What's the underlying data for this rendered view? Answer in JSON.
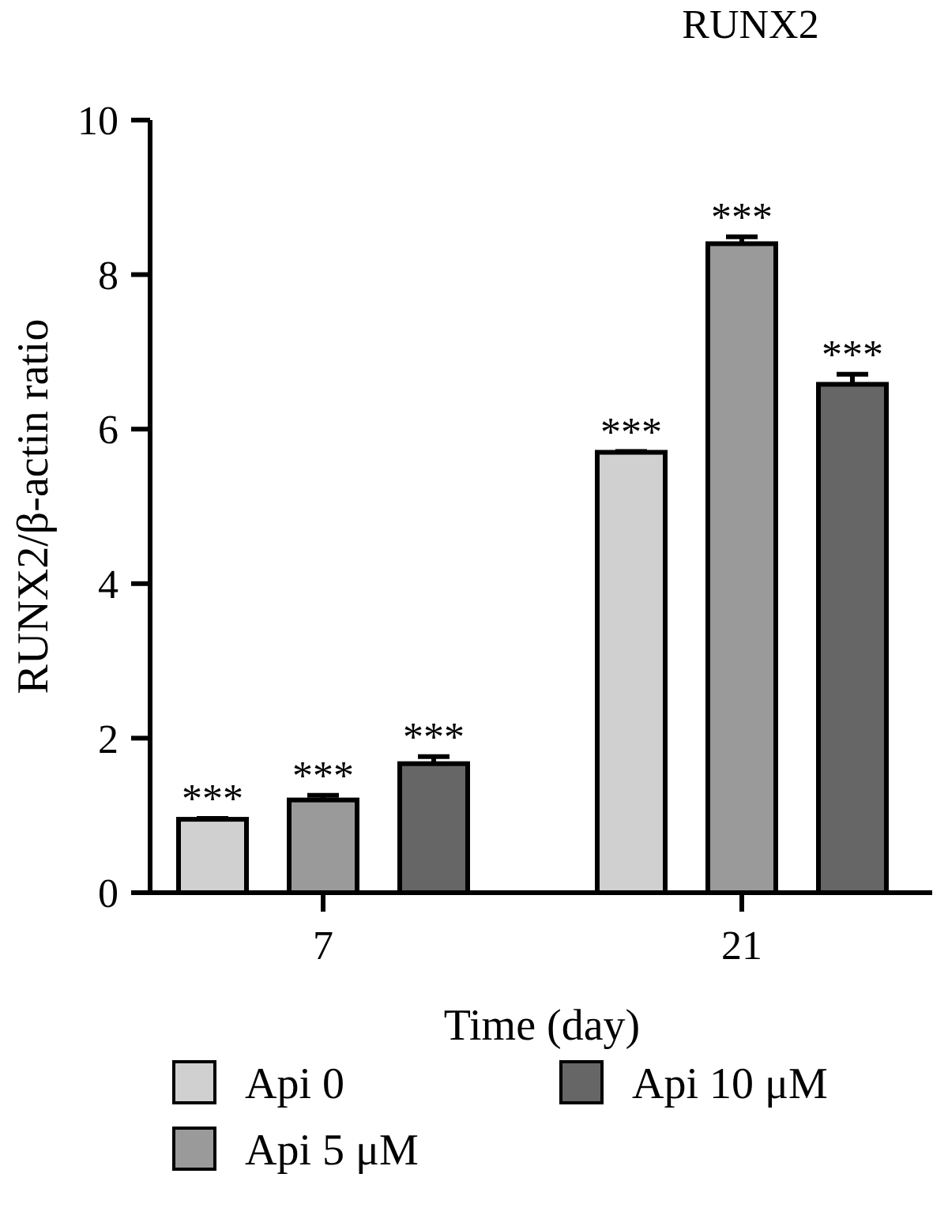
{
  "chart_data": {
    "type": "bar",
    "title": "RUNX2",
    "xlabel": "Time (day)",
    "ylabel": "RUNX2/β-actin ratio",
    "categories": [
      "7",
      "21"
    ],
    "series": [
      {
        "name": "Api 0",
        "color": "#d0d0d0",
        "values": [
          0.95,
          5.7
        ],
        "errors": [
          0.01,
          0.01
        ],
        "value_labels": [
          "***",
          "***"
        ]
      },
      {
        "name": "Api 5 μM",
        "color": "#9a9a9a",
        "values": [
          1.2,
          8.4
        ],
        "errors": [
          0.06,
          0.09
        ],
        "value_labels": [
          "***",
          "***"
        ]
      },
      {
        "name": "Api 10 μM",
        "color": "#666666",
        "values": [
          1.67,
          6.58
        ],
        "errors": [
          0.09,
          0.13
        ],
        "value_labels": [
          "***",
          "***"
        ]
      }
    ],
    "ylim": [
      0,
      10
    ],
    "yticks": [
      0,
      2,
      4,
      6,
      8,
      10
    ],
    "grid": false,
    "legend": "bottom"
  }
}
